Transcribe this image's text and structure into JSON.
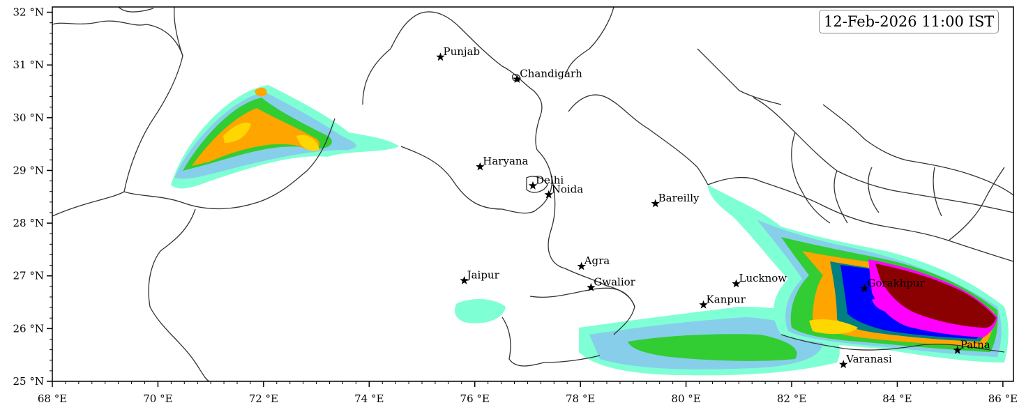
{
  "timestamp": "12-Feb-2026 11:00 IST",
  "axes": {
    "lon_ticks": [
      {
        "value": 68,
        "label": "68 °E"
      },
      {
        "value": 70,
        "label": "70 °E"
      },
      {
        "value": 72,
        "label": "72 °E"
      },
      {
        "value": 74,
        "label": "74 °E"
      },
      {
        "value": 76,
        "label": "76 °E"
      },
      {
        "value": 78,
        "label": "78 °E"
      },
      {
        "value": 80,
        "label": "80 °E"
      },
      {
        "value": 82,
        "label": "82 °E"
      },
      {
        "value": 84,
        "label": "84 °E"
      },
      {
        "value": 86,
        "label": "86 °E"
      }
    ],
    "lat_ticks": [
      {
        "value": 25,
        "label": "25 °N"
      },
      {
        "value": 26,
        "label": "26 °N"
      },
      {
        "value": 27,
        "label": "27 °N"
      },
      {
        "value": 28,
        "label": "28 °N"
      },
      {
        "value": 29,
        "label": "29 °N"
      },
      {
        "value": 30,
        "label": "30 °N"
      },
      {
        "value": 31,
        "label": "31 °N"
      },
      {
        "value": 32,
        "label": "32 °N"
      }
    ],
    "lon_range": [
      68,
      86.2
    ],
    "lat_range": [
      25,
      32.1
    ]
  },
  "cities": [
    {
      "name": "Punjab",
      "lon": 75.35,
      "lat": 31.15
    },
    {
      "name": "Chandigarh",
      "lon": 76.8,
      "lat": 30.73
    },
    {
      "name": "Haryana",
      "lon": 76.1,
      "lat": 29.07
    },
    {
      "name": "Delhi",
      "lon": 77.1,
      "lat": 28.71
    },
    {
      "name": "Noida",
      "lon": 77.4,
      "lat": 28.54
    },
    {
      "name": "Bareilly",
      "lon": 79.42,
      "lat": 28.37
    },
    {
      "name": "Agra",
      "lon": 78.02,
      "lat": 27.18
    },
    {
      "name": "Jaipur",
      "lon": 75.8,
      "lat": 26.91
    },
    {
      "name": "Gwalior",
      "lon": 78.2,
      "lat": 26.78
    },
    {
      "name": "Lucknow",
      "lon": 80.95,
      "lat": 26.85
    },
    {
      "name": "Kanpur",
      "lon": 80.33,
      "lat": 26.45
    },
    {
      "name": "Gorakhpur",
      "lon": 83.38,
      "lat": 26.76
    },
    {
      "name": "Patna",
      "lon": 85.14,
      "lat": 25.59
    },
    {
      "name": "Varanasi",
      "lon": 82.98,
      "lat": 25.32
    }
  ],
  "legend_colors": {
    "level1": "#7fffd4",
    "level2": "#87ceeb",
    "level3": "#32cd32",
    "level4": "#ffa500",
    "level5": "#ffd700",
    "level6": "#008080",
    "level7": "#0000ff",
    "level8": "#ff00ff",
    "level9": "#8b0000"
  }
}
